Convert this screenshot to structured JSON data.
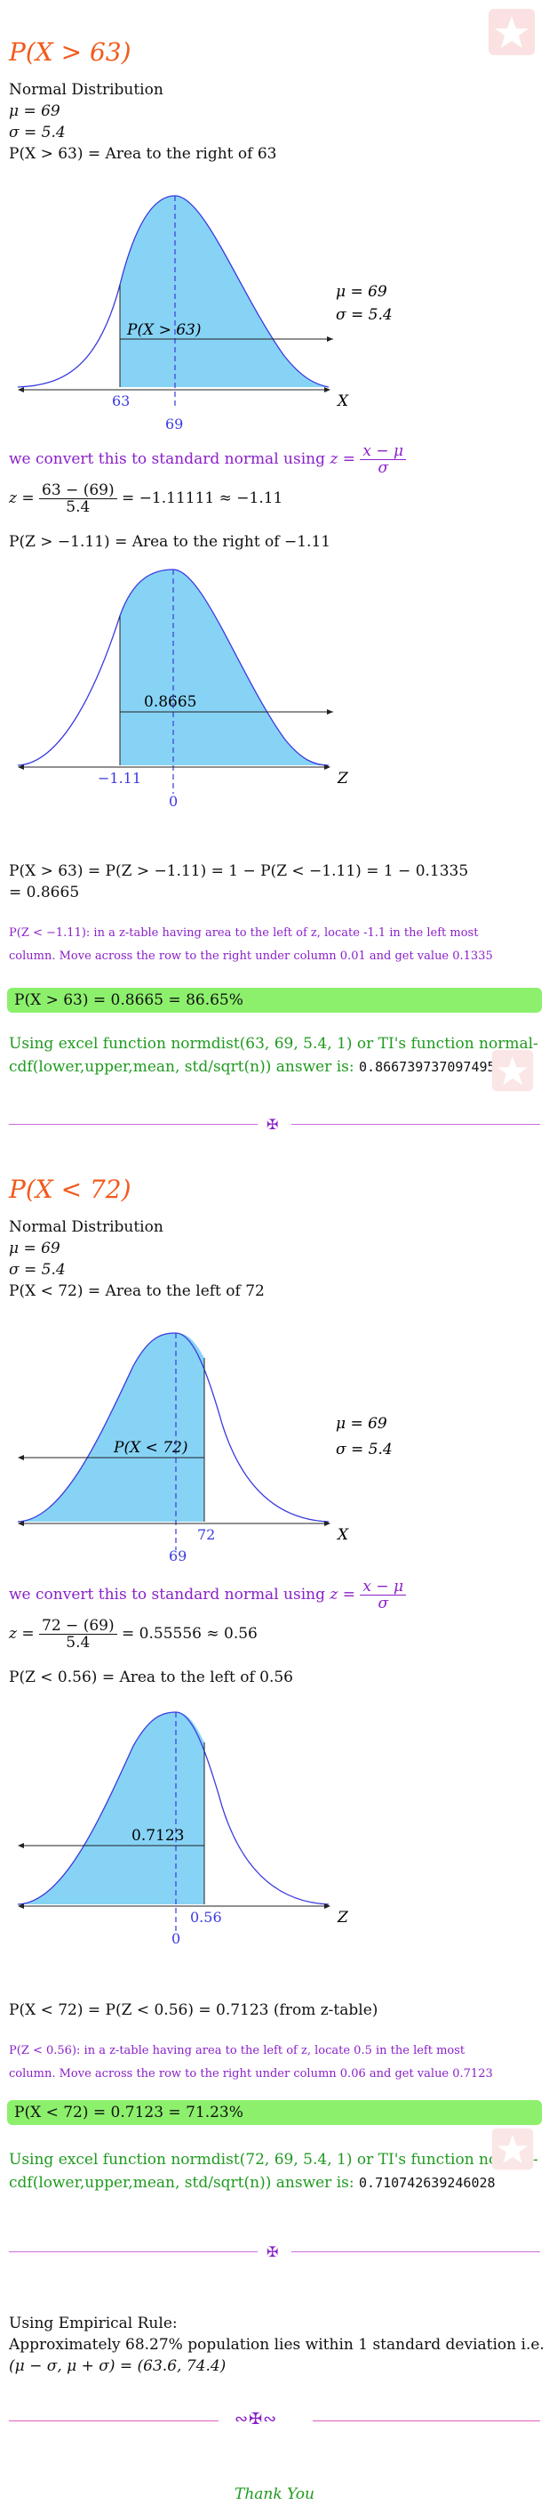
{
  "watermark": "logo",
  "part1": {
    "title": "P(X > 63)",
    "dist_name": "Normal Distribution",
    "mu_line": "μ = 69",
    "sigma_line": "σ = 5.4",
    "area_statement": "P(X > 63) = Area to the right of 63",
    "graph1": {
      "region_label": "P(X > 63)",
      "mu_label": "μ = 69",
      "sigma_label": "σ = 5.4",
      "tick_left": "63",
      "tick_mean": "69",
      "axis_label": "X"
    },
    "convert_text": "we convert this to standard normal using",
    "z_formula_lhs": "z =",
    "z_formula_num": "x − μ",
    "z_formula_den": "σ",
    "z_calc_lhs": "z =",
    "z_calc_num": "63 − (69)",
    "z_calc_den": "5.4",
    "z_calc_rhs": "= −1.11111 ≈ −1.11",
    "z_area_statement": "P(Z > −1.11) = Area to the right of −1.11",
    "graph2": {
      "region_label": "0.8665",
      "tick_left": "−1.11",
      "tick_mean": "0",
      "axis_label": "Z"
    },
    "result_line1": "P(X > 63) = P(Z > −1.11) = 1 − P(Z < −1.11) = 1 − 0.1335",
    "result_line2": "= 0.8665",
    "ztable_note_line1": "P(Z < −1.11): in a z-table having area to the left of z, locate -1.1 in the left most",
    "ztable_note_line2": "column. Move across the row to the right under column 0.01 and get value 0.1335",
    "highlight": "P(X > 63) = 0.8665 = 86.65%",
    "excel_line1": "Using excel function normdist(63, 69, 5.4, 1) or TI's function normal-",
    "excel_line2": "cdf(lower,upper,mean, std/sqrt(n)) answer is:",
    "excel_value": "0.866739737097495"
  },
  "part2": {
    "title": "P(X < 72)",
    "dist_name": "Normal Distribution",
    "mu_line": "μ = 69",
    "sigma_line": "σ = 5.4",
    "area_statement": "P(X < 72) = Area to the left of 72",
    "graph1": {
      "region_label": "P(X < 72)",
      "mu_label": "μ = 69",
      "sigma_label": "σ = 5.4",
      "tick_right": "72",
      "tick_mean": "69",
      "axis_label": "X"
    },
    "convert_text": "we convert this to standard normal using",
    "z_formula_lhs": "z =",
    "z_formula_num": "x − μ",
    "z_formula_den": "σ",
    "z_calc_lhs": "z =",
    "z_calc_num": "72 − (69)",
    "z_calc_den": "5.4",
    "z_calc_rhs": "= 0.55556 ≈ 0.56",
    "z_area_statement": "P(Z < 0.56) = Area to the left of 0.56",
    "graph2": {
      "region_label": "0.7123",
      "tick_right": "0.56",
      "tick_mean": "0",
      "axis_label": "Z"
    },
    "result_line1": "P(X < 72) = P(Z < 0.56) = 0.7123 (from z-table)",
    "ztable_note_line1": "P(Z < 0.56): in a z-table having area to the left of z, locate 0.5 in the left most",
    "ztable_note_line2": "column. Move across the row to the right under column 0.06 and get value 0.7123",
    "highlight": "P(X < 72) = 0.7123 = 71.23%",
    "excel_line1": "Using excel function normdist(72, 69, 5.4, 1) or TI's function normal-",
    "excel_line2": "cdf(lower,upper,mean, std/sqrt(n)) answer is:",
    "excel_value": "0.710742639246028"
  },
  "part3": {
    "heading": "Using Empirical Rule:",
    "line1": "Approximately 68.27% population lies within 1 standard deviation i.e.",
    "line2": "(μ − σ, μ + σ) = (63.6, 74.4)"
  },
  "thank_you": "Thank You",
  "colors": {
    "title": "#f25a1c",
    "curve": "#3a3ae0",
    "fill": "#87d3f5",
    "purple": "#8a20c8",
    "green": "#1f9a1f",
    "highlight": "#8cf06c"
  }
}
